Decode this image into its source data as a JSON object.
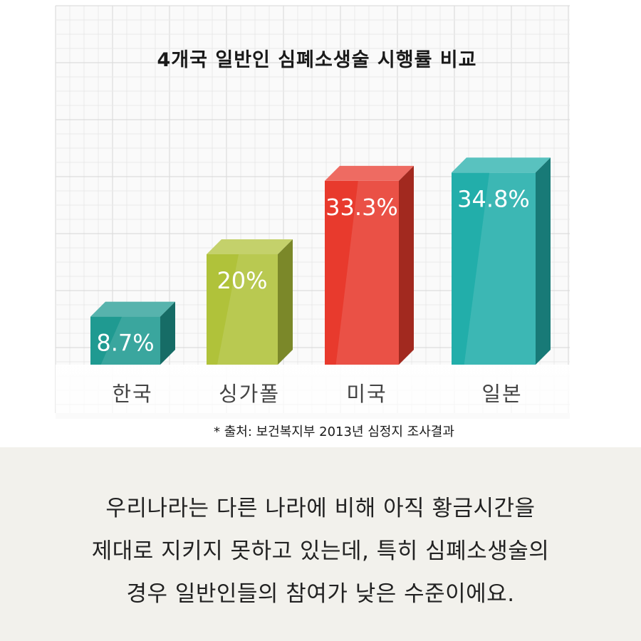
{
  "chart_data": {
    "type": "bar",
    "title": "4개국 일반인 심폐소생술 시행률 비교",
    "categories": [
      "한국",
      "싱가폴",
      "미국",
      "일본"
    ],
    "values": [
      8.7,
      20,
      33.3,
      34.8
    ],
    "value_labels": [
      "8.7%",
      "20%",
      "33.3%",
      "34.8%"
    ],
    "ylim": [
      0,
      40
    ],
    "grid": true,
    "bar_colors": [
      "#1f9a91",
      "#b0c23a",
      "#e83a2d",
      "#22aeaa"
    ],
    "source": "* 출처: 보건복지부 2013년 심정지 조사결과"
  },
  "caption": {
    "lines": [
      "우리나라는 다른 나라에 비해 아직 황금시간을",
      "제대로 지키지 못하고 있는데, 특히 심폐소생술의",
      "경우 일반인들의 참여가 낮은 수준이에요."
    ]
  }
}
